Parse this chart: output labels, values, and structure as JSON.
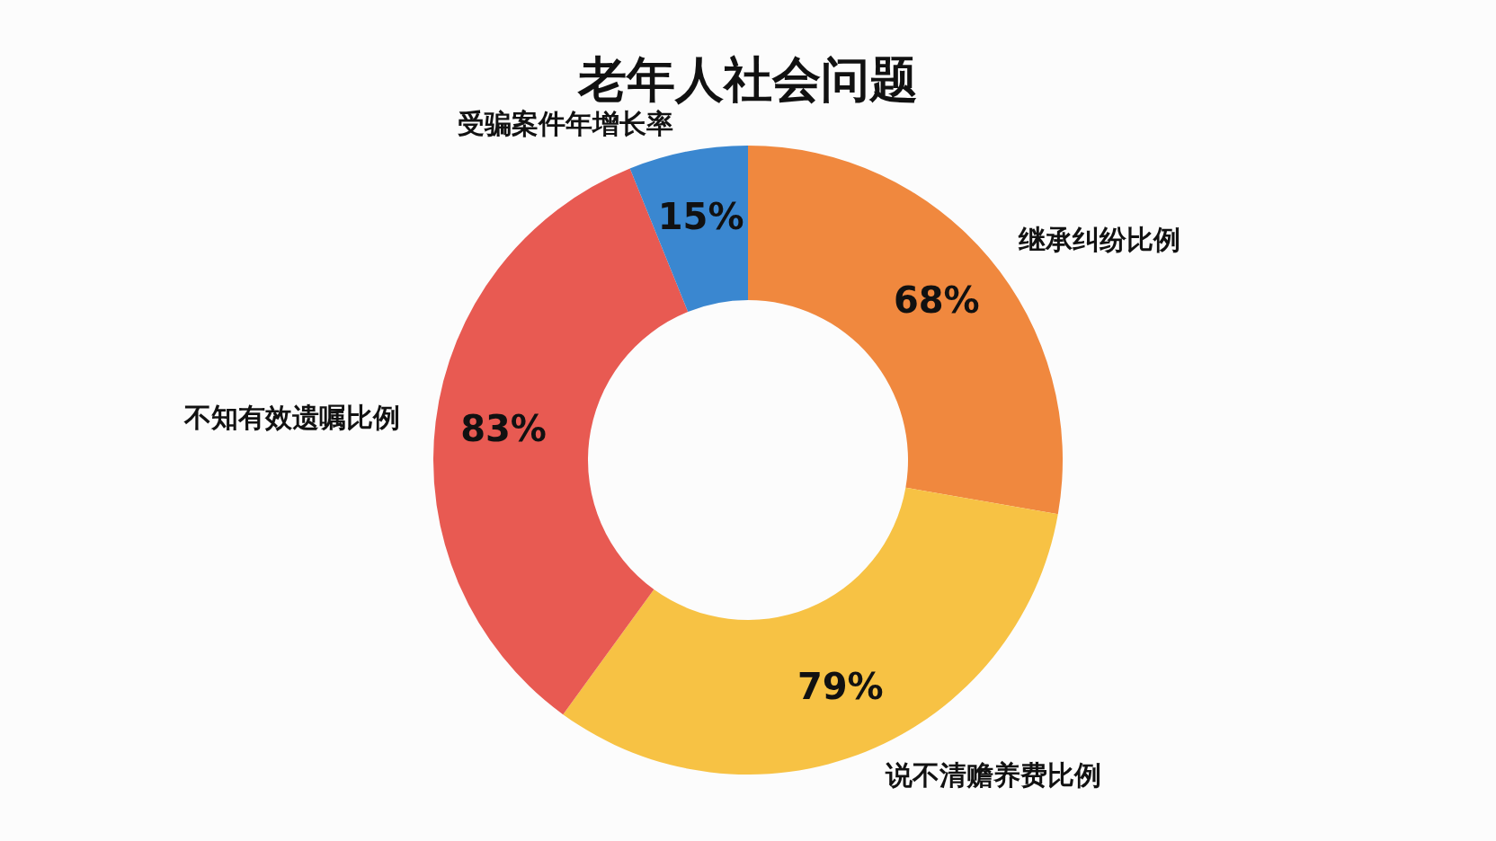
{
  "chart_data": {
    "type": "donut",
    "title": "老年人社会问题",
    "categories": [
      "继承纠纷比例",
      "说不清赡养费比例",
      "不知有效遗嘱比例",
      "受骗案件年增长率"
    ],
    "values": [
      68,
      79,
      83,
      15
    ],
    "value_labels": [
      "68%",
      "79%",
      "83%",
      "15%"
    ],
    "colors": [
      "#f0883e",
      "#f7c244",
      "#e85a52",
      "#3a87d0"
    ]
  }
}
